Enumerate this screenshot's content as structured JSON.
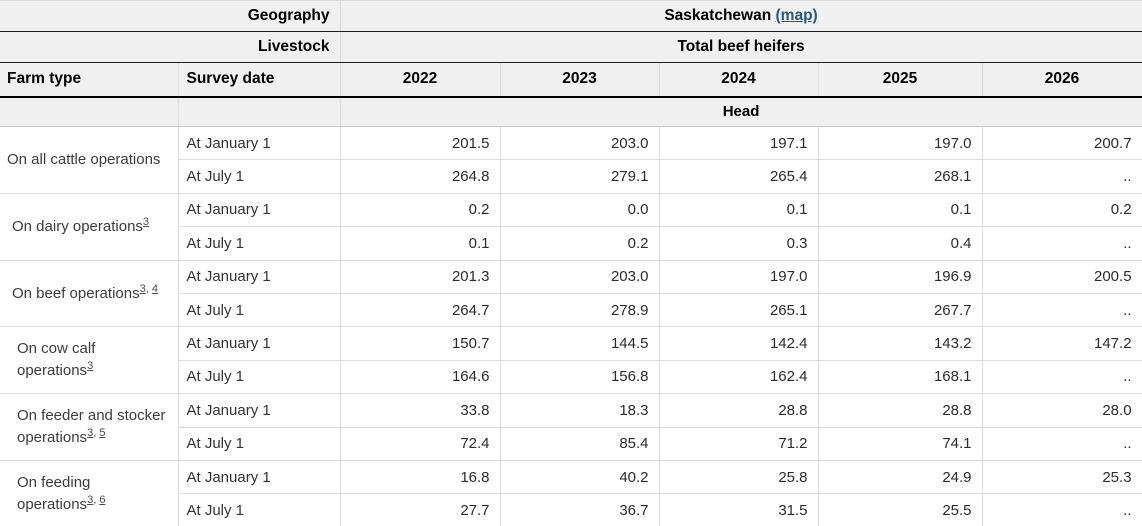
{
  "header": {
    "geography_label": "Geography",
    "geography_value": "Saskatchewan",
    "map_link_label": "(map)",
    "livestock_label": "Livestock",
    "livestock_value": "Total beef heifers",
    "farm_type_label": "Farm type",
    "survey_date_label": "Survey date",
    "years": [
      "2022",
      "2023",
      "2024",
      "2025",
      "2026"
    ],
    "unit_label": "Head"
  },
  "survey_dates": {
    "january": "At January 1",
    "july": "At July 1"
  },
  "not_available_symbol": "..",
  "rows": [
    {
      "farm_type": "On all cattle operations",
      "footnotes": [],
      "indent": 0,
      "january_values": [
        "201.5",
        "203.0",
        "197.1",
        "197.0",
        "200.7"
      ],
      "july_values": [
        "264.8",
        "279.1",
        "265.4",
        "268.1",
        ".."
      ]
    },
    {
      "farm_type": "On dairy operations",
      "footnotes": [
        "3"
      ],
      "indent": 1,
      "january_values": [
        "0.2",
        "0.0",
        "0.1",
        "0.1",
        "0.2"
      ],
      "july_values": [
        "0.1",
        "0.2",
        "0.3",
        "0.4",
        ".."
      ]
    },
    {
      "farm_type": "On beef operations",
      "footnotes": [
        "3",
        "4"
      ],
      "indent": 1,
      "january_values": [
        "201.3",
        "203.0",
        "197.0",
        "196.9",
        "200.5"
      ],
      "july_values": [
        "264.7",
        "278.9",
        "265.1",
        "267.7",
        ".."
      ]
    },
    {
      "farm_type": "On cow calf operations",
      "footnotes": [
        "3"
      ],
      "indent": 2,
      "january_values": [
        "150.7",
        "144.5",
        "142.4",
        "143.2",
        "147.2"
      ],
      "july_values": [
        "164.6",
        "156.8",
        "162.4",
        "168.1",
        ".."
      ]
    },
    {
      "farm_type": "On feeder and stocker operations",
      "footnotes": [
        "3",
        "5"
      ],
      "indent": 2,
      "january_values": [
        "33.8",
        "18.3",
        "28.8",
        "28.8",
        "28.0"
      ],
      "july_values": [
        "72.4",
        "85.4",
        "71.2",
        "74.1",
        ".."
      ]
    },
    {
      "farm_type": "On feeding operations",
      "footnotes": [
        "3",
        "6"
      ],
      "indent": 2,
      "january_values": [
        "16.8",
        "40.2",
        "25.8",
        "24.9",
        "25.3"
      ],
      "july_values": [
        "27.7",
        "36.7",
        "31.5",
        "25.5",
        ".."
      ]
    }
  ]
}
